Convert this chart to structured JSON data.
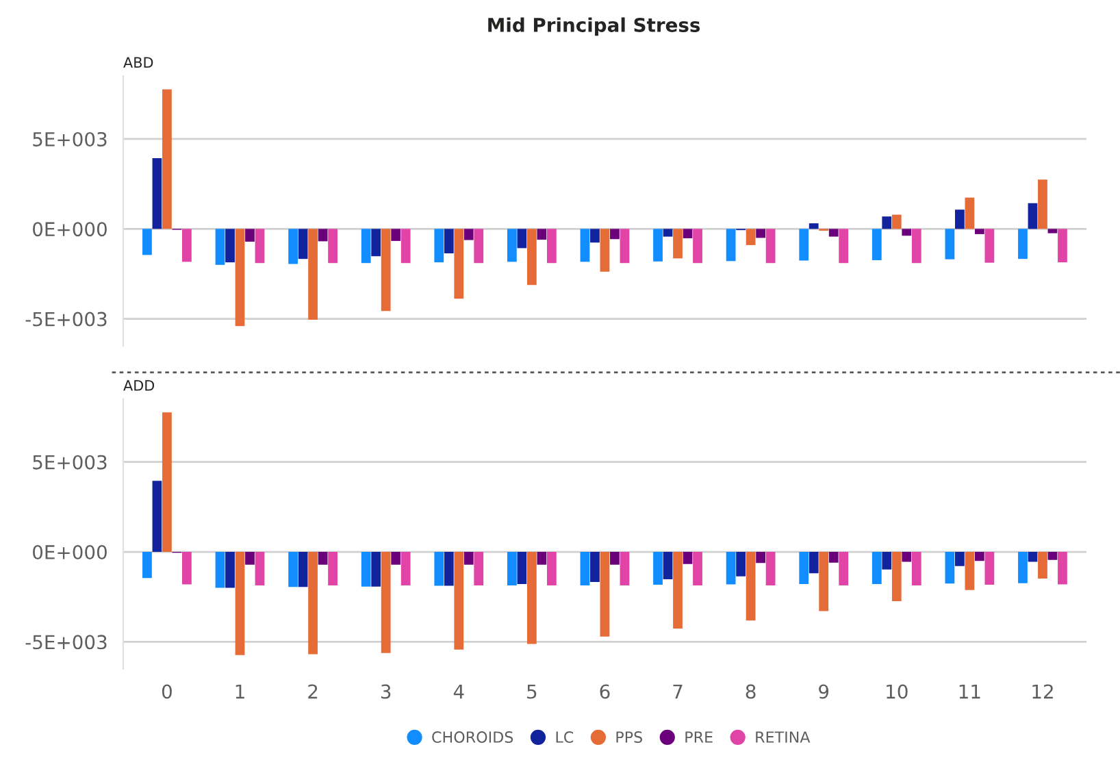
{
  "chart_data": [
    {
      "type": "bar",
      "title": "Mid Principal Stress",
      "subtitle": "ABD",
      "categories": [
        "0",
        "1",
        "2",
        "3",
        "4",
        "5",
        "6",
        "7",
        "8",
        "9",
        "10",
        "11",
        "12"
      ],
      "ylim": [
        -6500,
        8500
      ],
      "yticks": [
        {
          "value": -5000,
          "label": "-5E+003"
        },
        {
          "value": 0,
          "label": "0E+000"
        },
        {
          "value": 5000,
          "label": "5E+003"
        }
      ],
      "grid": "y",
      "tick_labels": "y",
      "series": [
        {
          "color": "#118dff",
          "values": [
            -1450,
            -2000,
            -1950,
            -1900,
            -1860,
            -1830,
            -1830,
            -1810,
            -1790,
            -1760,
            -1740,
            -1690,
            -1670
          ]
        },
        {
          "color": "#12239e",
          "values": [
            3930,
            -1860,
            -1670,
            -1520,
            -1360,
            -1070,
            -760,
            -430,
            -70,
            310,
            690,
            1070,
            1430
          ]
        },
        {
          "color": "#e66c37",
          "values": [
            7760,
            -5400,
            -5050,
            -4570,
            -3880,
            -3120,
            -2380,
            -1640,
            -900,
            -100,
            790,
            1740,
            2740
          ]
        },
        {
          "color": "#6b007b",
          "values": [
            -50,
            -710,
            -690,
            -670,
            -620,
            -600,
            -570,
            -520,
            -500,
            -430,
            -380,
            -290,
            -240
          ]
        },
        {
          "color": "#e044a7",
          "values": [
            -1830,
            -1900,
            -1900,
            -1900,
            -1900,
            -1900,
            -1900,
            -1900,
            -1900,
            -1900,
            -1900,
            -1880,
            -1860
          ]
        }
      ]
    },
    {
      "type": "bar",
      "subtitle": "ADD",
      "categories": [
        "0",
        "1",
        "2",
        "3",
        "4",
        "5",
        "6",
        "7",
        "8",
        "9",
        "10",
        "11",
        "12"
      ],
      "ylim": [
        -6500,
        8500
      ],
      "yticks": [
        {
          "value": -5000,
          "label": "-5E+003"
        },
        {
          "value": 0,
          "label": "0E+000"
        },
        {
          "value": 5000,
          "label": "5E+003"
        }
      ],
      "grid": "y",
      "legend": "bottom",
      "series": [
        {
          "name": "CHOROIDS",
          "color": "#118dff",
          "values": [
            -1450,
            -2000,
            -1950,
            -1930,
            -1880,
            -1860,
            -1860,
            -1830,
            -1810,
            -1790,
            -1790,
            -1760,
            -1740
          ]
        },
        {
          "name": "LC",
          "color": "#12239e",
          "values": [
            3950,
            -2000,
            -1950,
            -1930,
            -1880,
            -1790,
            -1670,
            -1520,
            -1360,
            -1190,
            -980,
            -790,
            -550
          ]
        },
        {
          "name": "PPS",
          "color": "#e66c37",
          "values": [
            7760,
            -5740,
            -5690,
            -5620,
            -5430,
            -5120,
            -4710,
            -4260,
            -3810,
            -3290,
            -2740,
            -2120,
            -1480
          ]
        },
        {
          "name": "PRE",
          "color": "#6b007b",
          "values": [
            -50,
            -710,
            -710,
            -710,
            -710,
            -710,
            -710,
            -670,
            -620,
            -600,
            -550,
            -500,
            -450
          ]
        },
        {
          "name": "RETINA",
          "color": "#e044a7",
          "values": [
            -1810,
            -1860,
            -1860,
            -1860,
            -1860,
            -1860,
            -1860,
            -1860,
            -1860,
            -1860,
            -1860,
            -1830,
            -1810
          ]
        }
      ]
    }
  ]
}
